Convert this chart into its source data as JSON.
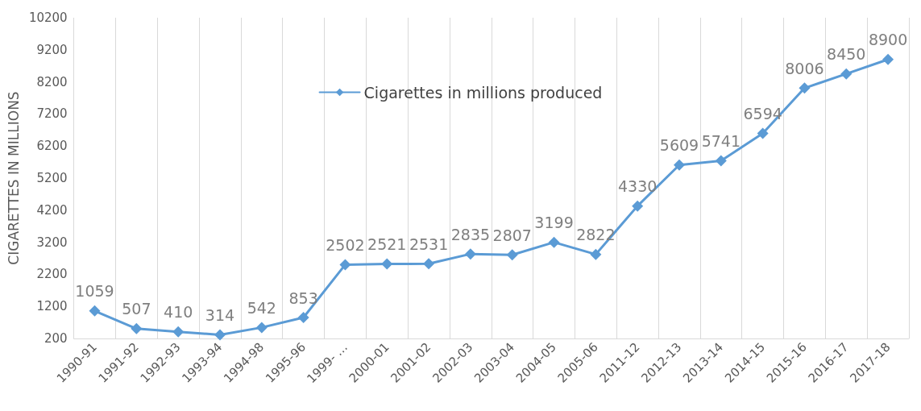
{
  "chart_data": {
    "type": "line",
    "ylabel": "CIGARETTES IN MILLIONS",
    "categories": [
      "1990-91",
      "1991-92",
      "1992-93",
      "1993-94",
      "1994-98",
      "1995-96",
      "1999- …",
      "2000-01",
      "2001-02",
      "2002-03",
      "2003-04",
      "2004-05",
      "2005-06",
      "2011-12",
      "2012-13",
      "2013-14",
      "2014-15",
      "2015-16",
      "2016-17",
      "2017-18"
    ],
    "series": [
      {
        "name": "Cigarettes in millions produced",
        "color": "#5b9bd5",
        "values": [
          1059,
          507,
          410,
          314,
          542,
          853,
          2502,
          2521,
          2531,
          2835,
          2807,
          3199,
          2822,
          4330,
          5609,
          5741,
          6594,
          8006,
          8450,
          8900
        ]
      }
    ],
    "ylim": [
      200,
      10200
    ],
    "yticks": [
      200,
      1200,
      2200,
      3200,
      4200,
      5200,
      6200,
      7200,
      8200,
      9200,
      10200
    ],
    "grid": "x",
    "legend": "top",
    "marker": "diamond",
    "line_style": "solid",
    "data_labels": true
  }
}
